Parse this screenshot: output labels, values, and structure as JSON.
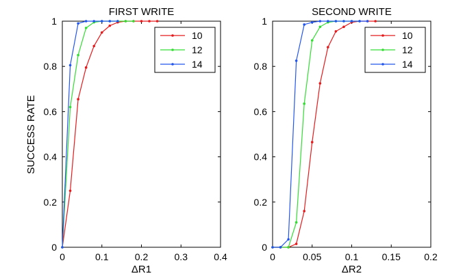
{
  "figure": {
    "ylabel": "SUCCESS RATE"
  },
  "chart_data": [
    {
      "type": "line",
      "title": "FIRST WRITE",
      "xlabel": "ΔR1",
      "ylabel": "SUCCESS RATE",
      "xlim": [
        0,
        0.4
      ],
      "ylim": [
        0,
        1
      ],
      "xticks": [
        "0",
        "0.1",
        "0.2",
        "0.3",
        "0.4"
      ],
      "yticks": [
        "0",
        "0.2",
        "0.4",
        "0.6",
        "0.8",
        "1"
      ],
      "grid": false,
      "legend_position": "top-right",
      "series": [
        {
          "name": "10",
          "color": "#e41a1c",
          "x": [
            0,
            0.02,
            0.04,
            0.06,
            0.08,
            0.1,
            0.12,
            0.14,
            0.16,
            0.18,
            0.2,
            0.22,
            0.24
          ],
          "y": [
            0,
            0.25,
            0.655,
            0.795,
            0.89,
            0.95,
            0.98,
            0.995,
            1,
            1,
            1,
            1,
            1
          ]
        },
        {
          "name": "12",
          "color": "#33dd33",
          "x": [
            0,
            0.02,
            0.04,
            0.06,
            0.08,
            0.1,
            0.12,
            0.14,
            0.16,
            0.18
          ],
          "y": [
            0,
            0.62,
            0.85,
            0.97,
            0.995,
            1,
            1,
            1,
            1,
            1
          ]
        },
        {
          "name": "14",
          "color": "#2255ee",
          "x": [
            0,
            0.02,
            0.04,
            0.06,
            0.08,
            0.1,
            0.12,
            0.14
          ],
          "y": [
            0,
            0.805,
            0.99,
            1,
            1,
            1,
            1,
            1
          ]
        }
      ]
    },
    {
      "type": "line",
      "title": "SECOND WRITE",
      "xlabel": "ΔR2",
      "xlim": [
        0,
        0.2
      ],
      "ylim": [
        0,
        1
      ],
      "xticks": [
        "0",
        "0.05",
        "0.1",
        "0.15",
        "0.2"
      ],
      "yticks": [
        "0",
        "0.2",
        "0.4",
        "0.6",
        "0.8",
        "1"
      ],
      "grid": false,
      "legend_position": "top-right",
      "series": [
        {
          "name": "10",
          "color": "#e41a1c",
          "x": [
            0,
            0.01,
            0.02,
            0.03,
            0.04,
            0.05,
            0.06,
            0.07,
            0.08,
            0.09,
            0.1,
            0.11,
            0.12,
            0.13
          ],
          "y": [
            0,
            0,
            0,
            0.015,
            0.16,
            0.465,
            0.725,
            0.885,
            0.955,
            0.975,
            0.995,
            1,
            1,
            1
          ]
        },
        {
          "name": "12",
          "color": "#33dd33",
          "x": [
            0,
            0.01,
            0.02,
            0.03,
            0.04,
            0.05,
            0.06,
            0.07,
            0.08,
            0.09,
            0.1,
            0.11
          ],
          "y": [
            0,
            0,
            0,
            0.11,
            0.635,
            0.915,
            0.975,
            0.995,
            1,
            1,
            1,
            1
          ]
        },
        {
          "name": "14",
          "color": "#2255ee",
          "x": [
            0,
            0.01,
            0.02,
            0.03,
            0.04,
            0.05,
            0.06,
            0.07,
            0.08,
            0.09,
            0.1,
            0.11,
            0.12
          ],
          "y": [
            0,
            0,
            0.035,
            0.825,
            0.985,
            0.995,
            1,
            1,
            1,
            1,
            1,
            1,
            1
          ]
        }
      ]
    }
  ]
}
